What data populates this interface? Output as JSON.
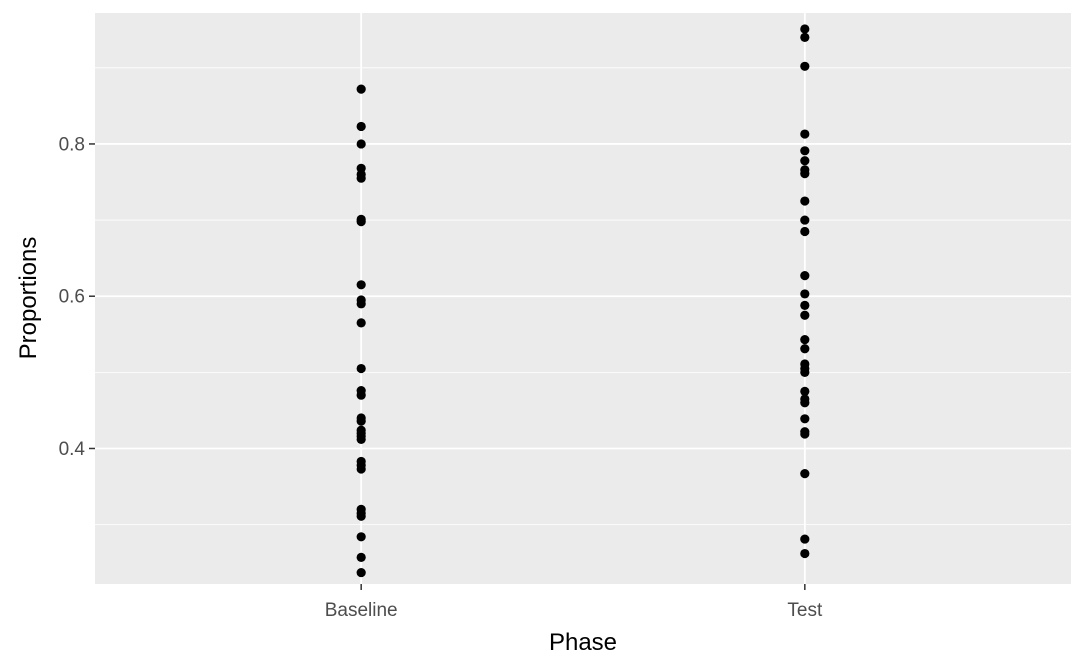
{
  "chart_data": {
    "type": "scatter",
    "x_type": "categorical",
    "categories": [
      "Baseline",
      "Test"
    ],
    "xlabel": "Phase",
    "ylabel": "Proportions",
    "ylim": [
      0.222,
      0.972
    ],
    "yticks": [
      0.4,
      0.6,
      0.8
    ],
    "ytick_labels": [
      "0.4",
      "0.6",
      "0.8"
    ],
    "grid": true,
    "theme": "ggplot2 grey",
    "colors": {
      "panel": "#ebebeb",
      "grid": "#ffffff",
      "point": "#000000"
    },
    "series": [
      {
        "category": "Baseline",
        "values": [
          0.872,
          0.823,
          0.8,
          0.768,
          0.76,
          0.755,
          0.701,
          0.698,
          0.615,
          0.595,
          0.59,
          0.565,
          0.505,
          0.476,
          0.47,
          0.44,
          0.436,
          0.424,
          0.42,
          0.416,
          0.412,
          0.383,
          0.378,
          0.373,
          0.32,
          0.315,
          0.311,
          0.284,
          0.257,
          0.237
        ]
      },
      {
        "category": "Test",
        "values": [
          0.951,
          0.94,
          0.902,
          0.813,
          0.791,
          0.778,
          0.766,
          0.761,
          0.725,
          0.7,
          0.685,
          0.627,
          0.603,
          0.588,
          0.575,
          0.543,
          0.531,
          0.511,
          0.505,
          0.5,
          0.475,
          0.465,
          0.46,
          0.439,
          0.422,
          0.419,
          0.367,
          0.281,
          0.262
        ]
      }
    ]
  }
}
